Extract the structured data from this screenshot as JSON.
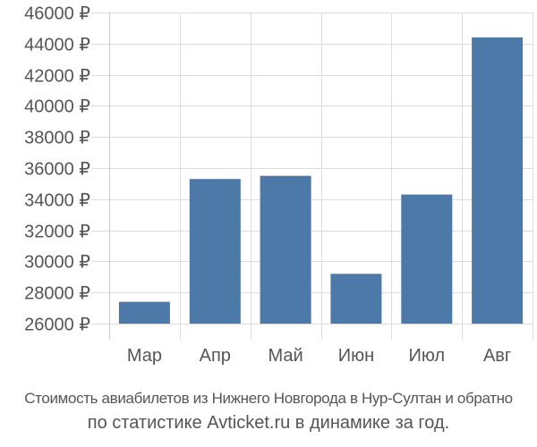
{
  "chart_data": {
    "type": "bar",
    "categories": [
      "Мар",
      "Апр",
      "Май",
      "Июн",
      "Июл",
      "Авг"
    ],
    "values": [
      27400,
      35300,
      35500,
      29200,
      34300,
      44400
    ],
    "ylim": [
      26000,
      46000
    ],
    "yticks": [
      26000,
      28000,
      30000,
      32000,
      34000,
      36000,
      38000,
      40000,
      42000,
      44000,
      46000
    ],
    "ytick_labels": [
      "26000 ₽",
      "28000 ₽",
      "30000 ₽",
      "32000 ₽",
      "34000 ₽",
      "36000 ₽",
      "38000 ₽",
      "40000 ₽",
      "42000 ₽",
      "44000 ₽",
      "46000 ₽"
    ],
    "bar_color": "#4d79a9",
    "grid": true,
    "grid_color": "#dddddd"
  },
  "caption": {
    "line1": "Стоимость авиабилетов из Нижнего Новгорода в Нур-Султан и обратно",
    "line2": "по статистике Avticket.ru в динамике за год."
  }
}
